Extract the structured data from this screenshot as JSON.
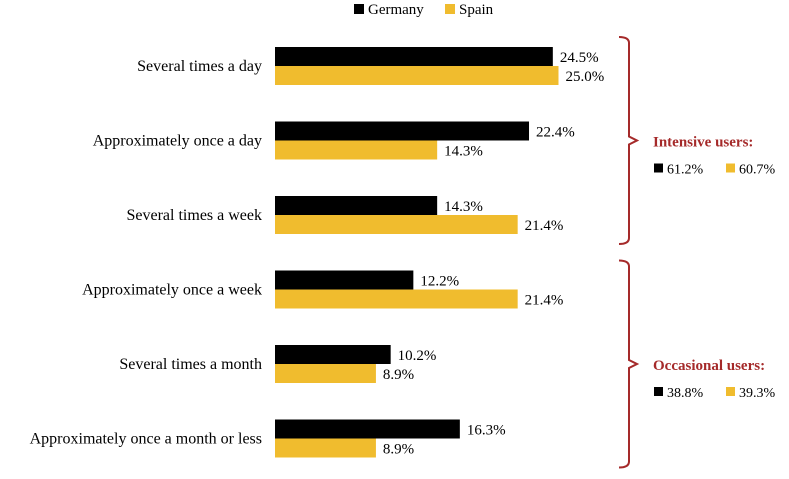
{
  "chart_data": {
    "type": "bar",
    "orientation": "horizontal",
    "categories": [
      "Several times a day",
      "Approximately once a day",
      "Several times a week",
      "Approximately once a week",
      "Several times a month",
      "Approximately once a month or less"
    ],
    "series": [
      {
        "name": "Germany",
        "color": "#000000",
        "values": [
          24.5,
          22.4,
          14.3,
          12.2,
          10.2,
          16.3
        ],
        "labels": [
          "24.5%",
          "22.4%",
          "14.3%",
          "12.2%",
          "10.2%",
          "16.3%"
        ]
      },
      {
        "name": "Spain",
        "color": "#f0bc2e",
        "values": [
          25.0,
          14.3,
          21.4,
          21.4,
          8.9,
          8.9
        ],
        "labels": [
          "25.0%",
          "14.3%",
          "21.4%",
          "21.4%",
          "8.9%",
          "8.9%"
        ]
      }
    ],
    "xlim": [
      0,
      35
    ],
    "legend_position": "top",
    "grid": false,
    "bracket_color": "#a52a2a",
    "groups": [
      {
        "title": "Intensive users:",
        "categories": [
          0,
          1,
          2
        ],
        "germany": "61.2%",
        "spain": "60.7%"
      },
      {
        "title": "Occasional users:",
        "categories": [
          3,
          4,
          5
        ],
        "germany": "38.8%",
        "spain": "39.3%"
      }
    ]
  }
}
